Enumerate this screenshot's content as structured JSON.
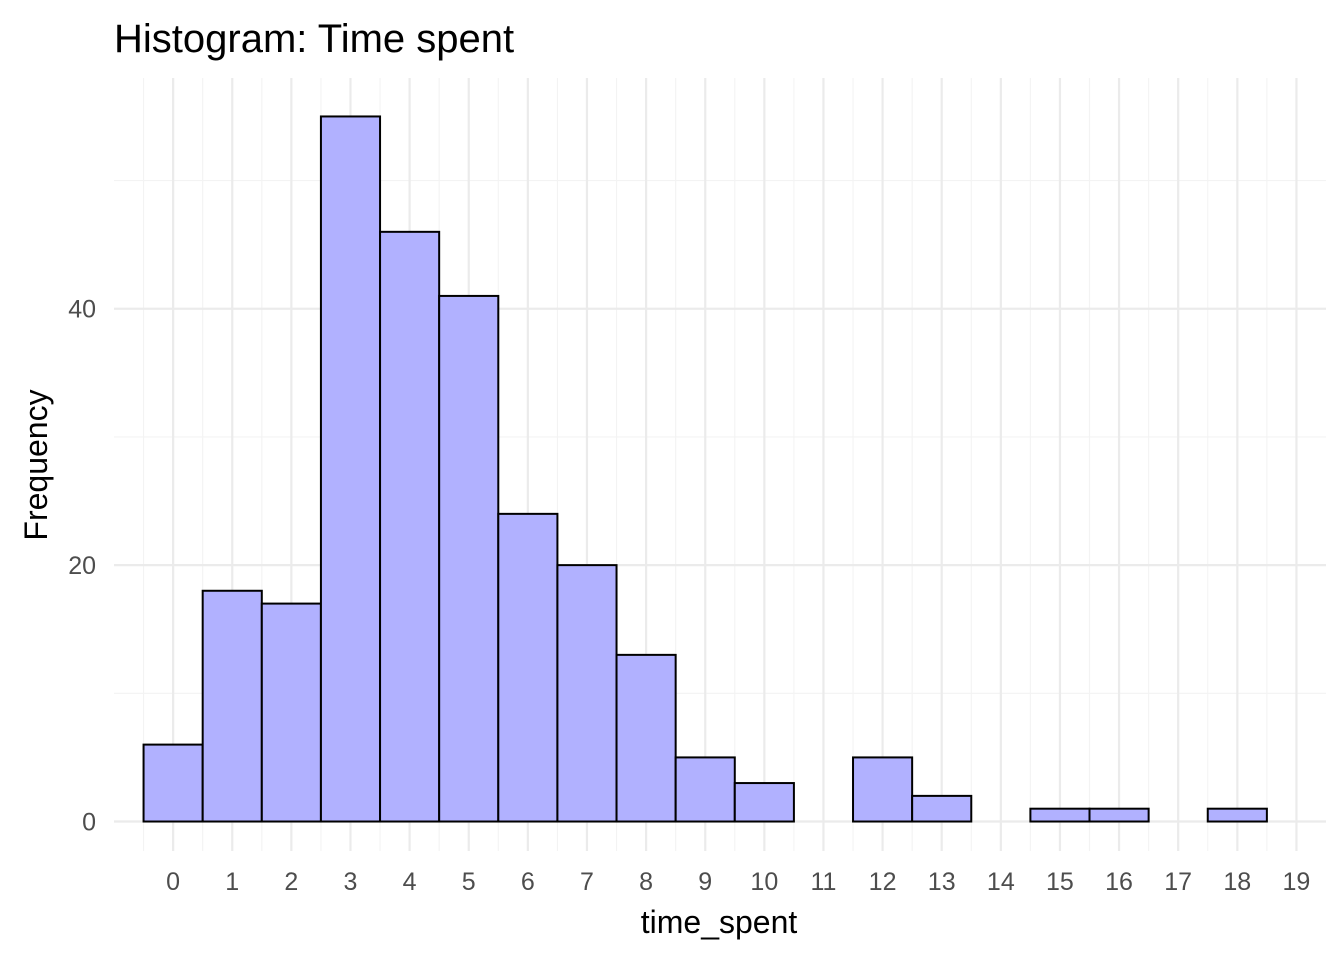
{
  "chart_data": {
    "type": "bar",
    "title": "Histogram: Time spent",
    "xlabel": "time_spent",
    "ylabel": "Frequency",
    "bin_width": 1,
    "x": [
      0,
      1,
      2,
      3,
      4,
      5,
      6,
      7,
      8,
      9,
      10,
      11,
      12,
      13,
      14,
      15,
      16,
      17,
      18
    ],
    "values": [
      6,
      18,
      17,
      55,
      46,
      41,
      24,
      20,
      13,
      5,
      3,
      0,
      5,
      2,
      0,
      1,
      1,
      0,
      1
    ],
    "x_ticks": [
      "0",
      "1",
      "2",
      "3",
      "4",
      "5",
      "6",
      "7",
      "8",
      "9",
      "10",
      "11",
      "12",
      "13",
      "14",
      "15",
      "16",
      "17",
      "18",
      "19"
    ],
    "y_ticks": [
      "0",
      "20",
      "40"
    ],
    "xlim": [
      -1,
      19.5
    ],
    "ylim": [
      -2.3,
      58
    ],
    "fill_color": "#b1b1ff",
    "outline_color": "#000000",
    "grid": true,
    "legend": "none"
  }
}
